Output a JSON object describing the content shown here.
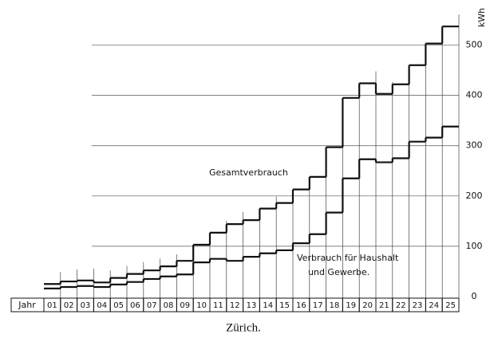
{
  "chart_data": {
    "type": "step",
    "title": "Zürich.",
    "x_label": "Jahr",
    "y_label": "kWh",
    "categories": [
      "01",
      "02",
      "03",
      "04",
      "05",
      "06",
      "07",
      "08",
      "09",
      "10",
      "11",
      "12",
      "13",
      "14",
      "15",
      "16",
      "17",
      "18",
      "19",
      "20",
      "21",
      "22",
      "23",
      "24",
      "25"
    ],
    "series": [
      {
        "name": "Gesamtverbrauch",
        "color": "#111111",
        "values": [
          25,
          30,
          32,
          28,
          37,
          45,
          52,
          60,
          71,
          103,
          127,
          144,
          152,
          175,
          186,
          213,
          238,
          297,
          395,
          424,
          403,
          422,
          460,
          503,
          537
        ]
      },
      {
        "name": "Verbrauch für Haushalt und Gewerbe.",
        "color": "#111111",
        "values": [
          16,
          19,
          21,
          19,
          24,
          29,
          35,
          40,
          44,
          68,
          75,
          71,
          79,
          86,
          92,
          106,
          124,
          167,
          235,
          273,
          267,
          275,
          308,
          316,
          338
        ]
      }
    ],
    "ylim": [
      0,
      550
    ],
    "yticks": [
      0,
      100,
      200,
      300,
      400,
      500
    ],
    "grid": true
  }
}
